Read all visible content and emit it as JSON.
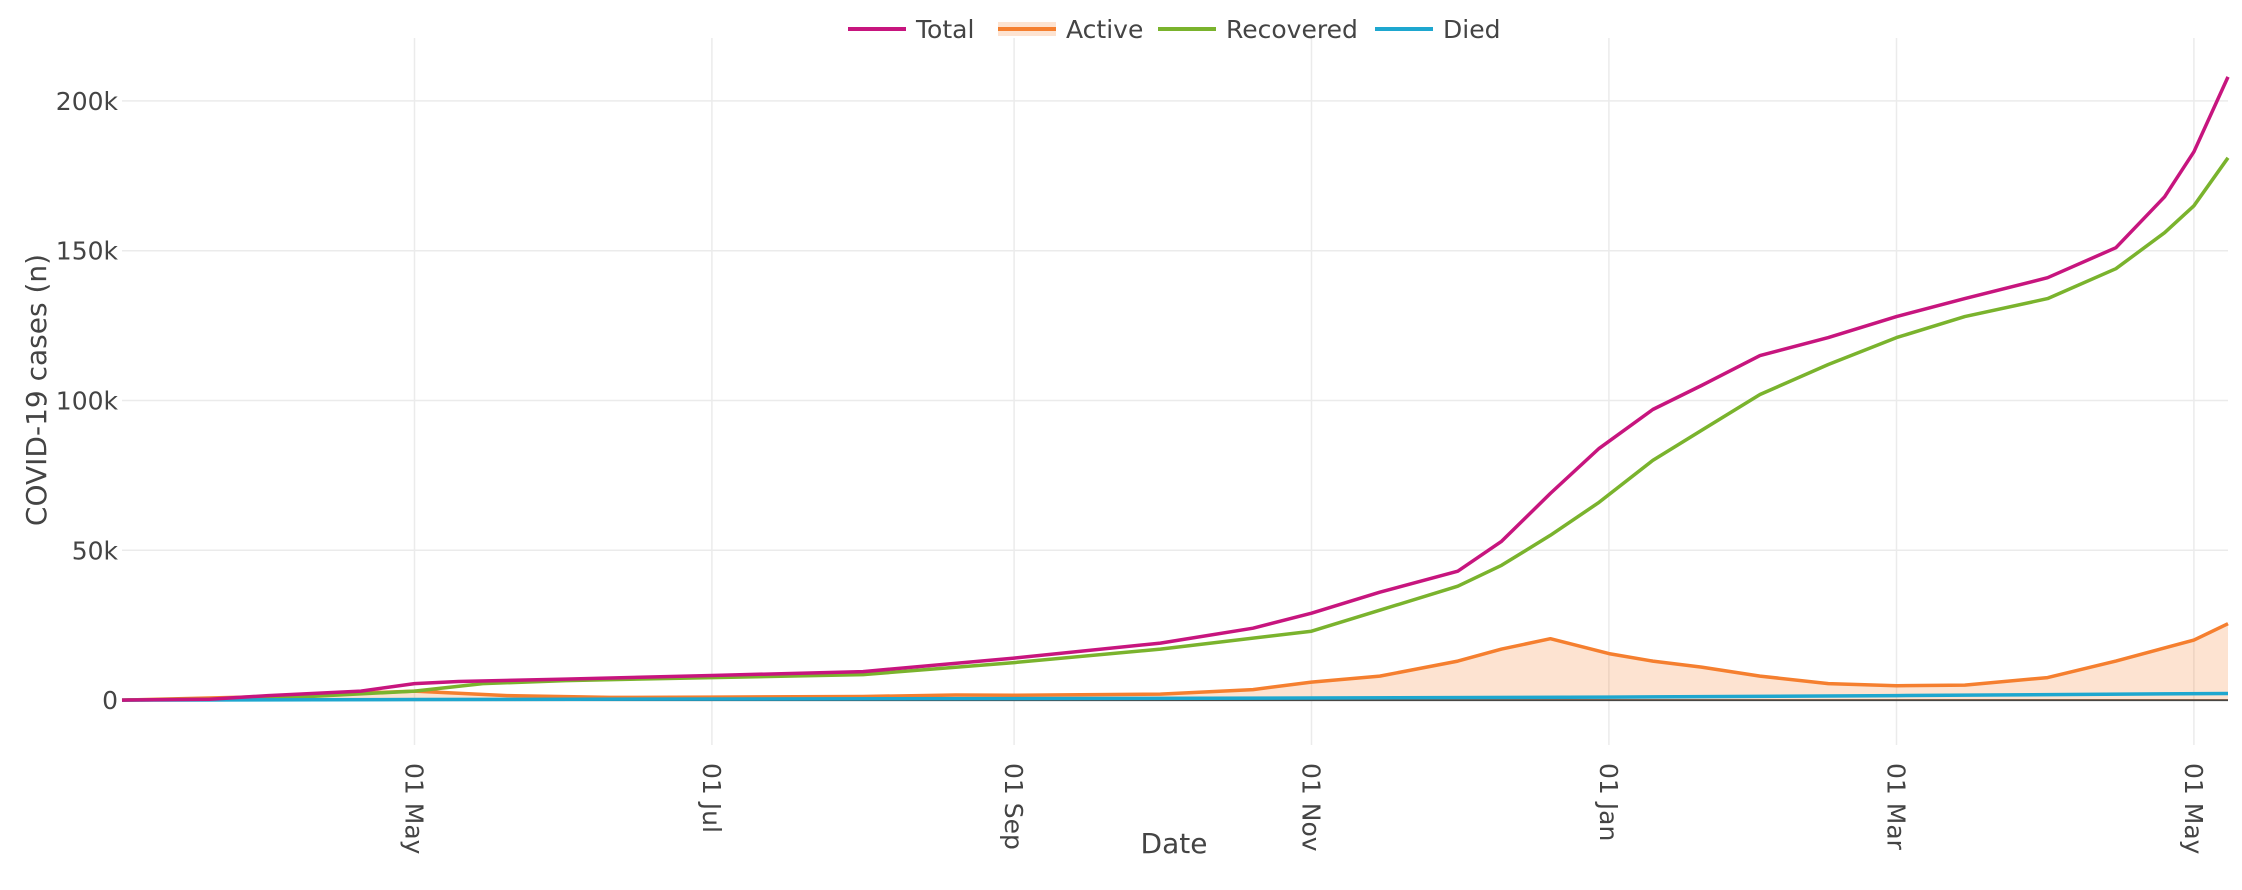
{
  "chart_data": {
    "type": "line",
    "title": "",
    "xlabel": "Date",
    "ylabel": "COVID-19 cases (n)",
    "x_range": [
      "2020-03-02",
      "2021-05-08"
    ],
    "ylim": [
      -15000,
      221000
    ],
    "x_ticks": [
      {
        "date": "2020-05-01",
        "label": "01 May"
      },
      {
        "date": "2020-07-01",
        "label": "01 Jul"
      },
      {
        "date": "2020-09-01",
        "label": "01 Sep"
      },
      {
        "date": "2020-11-01",
        "label": "01 Nov"
      },
      {
        "date": "2021-01-01",
        "label": "01 Jan"
      },
      {
        "date": "2021-03-01",
        "label": "01 Mar"
      },
      {
        "date": "2021-05-01",
        "label": "01 May"
      }
    ],
    "y_ticks": [
      {
        "value": 0,
        "label": "0"
      },
      {
        "value": 50000,
        "label": "50k"
      },
      {
        "value": 100000,
        "label": "100k"
      },
      {
        "value": 150000,
        "label": "150k"
      },
      {
        "value": 200000,
        "label": "200k"
      }
    ],
    "legend_position": "top-center",
    "series": [
      {
        "name": "Total",
        "color": "#c7157e",
        "fill": false,
        "points": [
          [
            "2020-03-02",
            0
          ],
          [
            "2020-03-20",
            300
          ],
          [
            "2020-04-01",
            1500
          ],
          [
            "2020-04-20",
            3000
          ],
          [
            "2020-05-01",
            5500
          ],
          [
            "2020-05-10",
            6200
          ],
          [
            "2020-06-01",
            7000
          ],
          [
            "2020-07-01",
            8200
          ],
          [
            "2020-08-01",
            9500
          ],
          [
            "2020-09-01",
            14000
          ],
          [
            "2020-10-01",
            19000
          ],
          [
            "2020-10-20",
            24000
          ],
          [
            "2020-11-01",
            29000
          ],
          [
            "2020-11-15",
            36000
          ],
          [
            "2020-12-01",
            43000
          ],
          [
            "2020-12-10",
            53000
          ],
          [
            "2020-12-20",
            69000
          ],
          [
            "2020-12-30",
            84000
          ],
          [
            "2021-01-10",
            97000
          ],
          [
            "2021-01-20",
            105000
          ],
          [
            "2021-02-01",
            115000
          ],
          [
            "2021-02-15",
            121000
          ],
          [
            "2021-03-01",
            128000
          ],
          [
            "2021-03-15",
            134000
          ],
          [
            "2021-04-01",
            141000
          ],
          [
            "2021-04-15",
            151000
          ],
          [
            "2021-04-25",
            168000
          ],
          [
            "2021-05-01",
            183000
          ],
          [
            "2021-05-08",
            208000
          ]
        ]
      },
      {
        "name": "Active",
        "color": "#f57f2f",
        "fill": true,
        "points": [
          [
            "2020-03-02",
            0
          ],
          [
            "2020-04-01",
            1200
          ],
          [
            "2020-05-01",
            3000
          ],
          [
            "2020-05-20",
            1500
          ],
          [
            "2020-06-10",
            900
          ],
          [
            "2020-07-01",
            1000
          ],
          [
            "2020-08-01",
            1200
          ],
          [
            "2020-08-20",
            1700
          ],
          [
            "2020-09-01",
            1600
          ],
          [
            "2020-10-01",
            2000
          ],
          [
            "2020-10-20",
            3500
          ],
          [
            "2020-11-01",
            6000
          ],
          [
            "2020-11-15",
            8000
          ],
          [
            "2020-12-01",
            13000
          ],
          [
            "2020-12-10",
            17000
          ],
          [
            "2020-12-20",
            20500
          ],
          [
            "2021-01-01",
            15500
          ],
          [
            "2021-01-10",
            13000
          ],
          [
            "2021-01-20",
            11000
          ],
          [
            "2021-02-01",
            8000
          ],
          [
            "2021-02-15",
            5500
          ],
          [
            "2021-03-01",
            4800
          ],
          [
            "2021-03-15",
            5000
          ],
          [
            "2021-04-01",
            7500
          ],
          [
            "2021-04-15",
            13000
          ],
          [
            "2021-05-01",
            20000
          ],
          [
            "2021-05-08",
            25500
          ]
        ]
      },
      {
        "name": "Recovered",
        "color": "#7ab32d",
        "fill": false,
        "points": [
          [
            "2020-03-02",
            0
          ],
          [
            "2020-04-01",
            500
          ],
          [
            "2020-05-01",
            3000
          ],
          [
            "2020-05-15",
            5500
          ],
          [
            "2020-06-01",
            6500
          ],
          [
            "2020-07-01",
            7500
          ],
          [
            "2020-08-01",
            8500
          ],
          [
            "2020-09-01",
            12500
          ],
          [
            "2020-10-01",
            17000
          ],
          [
            "2020-11-01",
            23000
          ],
          [
            "2020-11-15",
            30000
          ],
          [
            "2020-12-01",
            38000
          ],
          [
            "2020-12-10",
            45000
          ],
          [
            "2020-12-20",
            55000
          ],
          [
            "2020-12-30",
            66000
          ],
          [
            "2021-01-10",
            80000
          ],
          [
            "2021-01-20",
            90000
          ],
          [
            "2021-02-01",
            102000
          ],
          [
            "2021-02-15",
            112000
          ],
          [
            "2021-03-01",
            121000
          ],
          [
            "2021-03-15",
            128000
          ],
          [
            "2021-04-01",
            134000
          ],
          [
            "2021-04-15",
            144000
          ],
          [
            "2021-04-25",
            156000
          ],
          [
            "2021-05-01",
            165000
          ],
          [
            "2021-05-08",
            181000
          ]
        ]
      },
      {
        "name": "Died",
        "color": "#1ea7cf",
        "fill": false,
        "points": [
          [
            "2020-03-02",
            0
          ],
          [
            "2020-05-01",
            200
          ],
          [
            "2020-09-01",
            500
          ],
          [
            "2020-11-01",
            700
          ],
          [
            "2021-01-01",
            1000
          ],
          [
            "2021-03-01",
            1500
          ],
          [
            "2021-05-08",
            2200
          ]
        ]
      }
    ]
  }
}
